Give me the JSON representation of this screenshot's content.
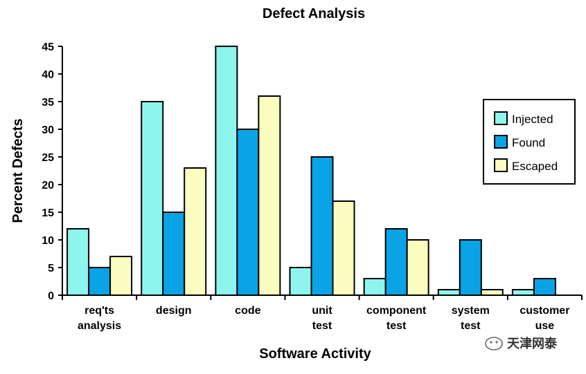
{
  "chart_data": {
    "type": "bar",
    "title": "Defect Analysis",
    "xlabel": "Software Activity",
    "ylabel": "Percent Defects",
    "ylim": [
      0,
      45
    ],
    "yticks": [
      0,
      5,
      10,
      15,
      20,
      25,
      30,
      35,
      40,
      45
    ],
    "categories": [
      [
        "req'ts",
        "analysis"
      ],
      [
        "design"
      ],
      [
        "code"
      ],
      [
        "unit",
        "test"
      ],
      [
        "component",
        "test"
      ],
      [
        "system",
        "test"
      ],
      [
        "customer",
        "use"
      ]
    ],
    "series": [
      {
        "name": "Injected",
        "color": "#8ef4ee",
        "values": [
          12,
          35,
          45,
          5,
          3,
          1,
          1
        ]
      },
      {
        "name": "Found",
        "color": "#0aa3e6",
        "values": [
          5,
          15,
          30,
          25,
          12,
          10,
          3
        ]
      },
      {
        "name": "Escaped",
        "color": "#fafcc0",
        "values": [
          7,
          23,
          36,
          17,
          10,
          1,
          0
        ]
      }
    ],
    "legend_position": "right",
    "grid": false
  },
  "watermark": {
    "text": "天津网泰"
  }
}
